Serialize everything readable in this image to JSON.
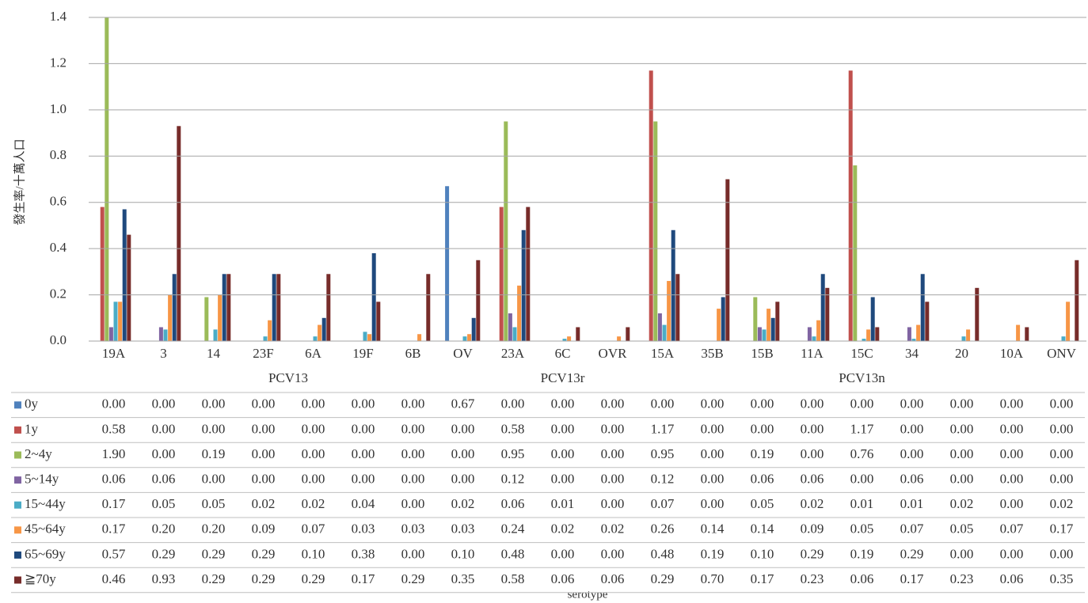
{
  "chart_data": {
    "type": "bar",
    "y_label": "發生率/十萬人口",
    "x_label": "serotype",
    "categories": [
      "19A",
      "3",
      "14",
      "23F",
      "6A",
      "19F",
      "6B",
      "OV",
      "23A",
      "6C",
      "OVR",
      "15A",
      "35B",
      "15B",
      "11A",
      "15C",
      "34",
      "20",
      "10A",
      "ONV"
    ],
    "groups": [
      "PCV13",
      "PCV13r",
      "PCV13n"
    ],
    "ylim": [
      0,
      1.4
    ],
    "yticks": [
      {
        "value": 0,
        "label": "0.0"
      },
      0.2,
      0.4,
      0.6,
      0.8,
      {
        "value": 1,
        "label": "1.0"
      },
      1.2,
      1.4
    ],
    "grid": true,
    "series": [
      {
        "name": "0y",
        "color": "#4f81bd",
        "values": [
          0,
          0,
          0,
          0,
          0,
          0,
          0,
          0.67,
          0,
          0,
          0,
          0,
          0,
          0,
          0,
          0,
          0,
          0,
          0,
          0
        ],
        "value_labels": [
          "0.00",
          "0.00",
          "0.00",
          "0.00",
          "0.00",
          "0.00",
          "0.00",
          "0.67",
          "0.00",
          "0.00",
          "0.00",
          "0.00",
          "0.00",
          "0.00",
          "0.00",
          "0.00",
          "0.00",
          "0.00",
          "0.00",
          "0.00"
        ]
      },
      {
        "name": "1y",
        "color": "#c0504d",
        "values": [
          0.58,
          0,
          0,
          0,
          0,
          0,
          0,
          0,
          0.58,
          0,
          0,
          1.17,
          0,
          0,
          0,
          1.17,
          0,
          0,
          0,
          0
        ],
        "value_labels": [
          "0.58",
          "0.00",
          "0.00",
          "0.00",
          "0.00",
          "0.00",
          "0.00",
          "0.00",
          "0.58",
          "0.00",
          "0.00",
          "1.17",
          "0.00",
          "0.00",
          "0.00",
          "1.17",
          "0.00",
          "0.00",
          "0.00",
          "0.00"
        ]
      },
      {
        "name": "2~4y",
        "color": "#9bbb59",
        "values": [
          1.9,
          0,
          0.19,
          0,
          0,
          0,
          0,
          0,
          0.95,
          0,
          0,
          0.95,
          0,
          0.19,
          0,
          0.76,
          0,
          0,
          0,
          0
        ],
        "value_labels": [
          "1.90",
          "0.00",
          "0.19",
          "0.00",
          "0.00",
          "0.00",
          "0.00",
          "0.00",
          "0.95",
          "0.00",
          "0.00",
          "0.95",
          "0.00",
          "0.19",
          "0.00",
          "0.76",
          "0.00",
          "0.00",
          "0.00",
          "0.00"
        ]
      },
      {
        "name": "5~14y",
        "color": "#8064a2",
        "values": [
          0.06,
          0.06,
          0,
          0,
          0,
          0,
          0,
          0,
          0.12,
          0,
          0,
          0.12,
          0,
          0.06,
          0.06,
          0,
          0.06,
          0,
          0,
          0
        ],
        "value_labels": [
          "0.06",
          "0.06",
          "0.00",
          "0.00",
          "0.00",
          "0.00",
          "0.00",
          "0.00",
          "0.12",
          "0.00",
          "0.00",
          "0.12",
          "0.00",
          "0.06",
          "0.06",
          "0.00",
          "0.06",
          "0.00",
          "0.00",
          "0.00"
        ]
      },
      {
        "name": "15~44y",
        "color": "#4bacc6",
        "values": [
          0.17,
          0.05,
          0.05,
          0.02,
          0.02,
          0.04,
          0,
          0.02,
          0.06,
          0.01,
          0,
          0.07,
          0,
          0.05,
          0.02,
          0.01,
          0.01,
          0.02,
          0,
          0.02
        ],
        "value_labels": [
          "0.17",
          "0.05",
          "0.05",
          "0.02",
          "0.02",
          "0.04",
          "0.00",
          "0.02",
          "0.06",
          "0.01",
          "0.00",
          "0.07",
          "0.00",
          "0.05",
          "0.02",
          "0.01",
          "0.01",
          "0.02",
          "0.00",
          "0.02"
        ]
      },
      {
        "name": "45~64y",
        "color": "#f79646",
        "values": [
          0.17,
          0.2,
          0.2,
          0.09,
          0.07,
          0.03,
          0.03,
          0.03,
          0.24,
          0.02,
          0.02,
          0.26,
          0.14,
          0.14,
          0.09,
          0.05,
          0.07,
          0.05,
          0.07,
          0.17
        ],
        "value_labels": [
          "0.17",
          "0.20",
          "0.20",
          "0.09",
          "0.07",
          "0.03",
          "0.03",
          "0.03",
          "0.24",
          "0.02",
          "0.02",
          "0.26",
          "0.14",
          "0.14",
          "0.09",
          "0.05",
          "0.07",
          "0.05",
          "0.07",
          "0.17"
        ]
      },
      {
        "name": "65~69y",
        "color": "#1f497d",
        "values": [
          0.57,
          0.29,
          0.29,
          0.29,
          0.1,
          0.38,
          0,
          0.1,
          0.48,
          0,
          0,
          0.48,
          0.19,
          0.1,
          0.29,
          0.19,
          0.29,
          0,
          0,
          0
        ],
        "value_labels": [
          "0.57",
          "0.29",
          "0.29",
          "0.29",
          "0.10",
          "0.38",
          "0.00",
          "0.10",
          "0.48",
          "0.00",
          "0.00",
          "0.48",
          "0.19",
          "0.10",
          "0.29",
          "0.19",
          "0.29",
          "0.00",
          "0.00",
          "0.00"
        ]
      },
      {
        "name": "≧70y",
        "color": "#772c2a",
        "values": [
          0.46,
          0.93,
          0.29,
          0.29,
          0.29,
          0.17,
          0.29,
          0.35,
          0.58,
          0.06,
          0.06,
          0.29,
          0.7,
          0.17,
          0.23,
          0.06,
          0.17,
          0.23,
          0.06,
          0.35
        ],
        "value_labels": [
          "0.46",
          "0.93",
          "0.29",
          "0.29",
          "0.29",
          "0.17",
          "0.29",
          "0.35",
          "0.58",
          "0.06",
          "0.06",
          "0.29",
          "0.70",
          "0.17",
          "0.23",
          "0.06",
          "0.17",
          "0.23",
          "0.06",
          "0.35"
        ]
      }
    ]
  }
}
